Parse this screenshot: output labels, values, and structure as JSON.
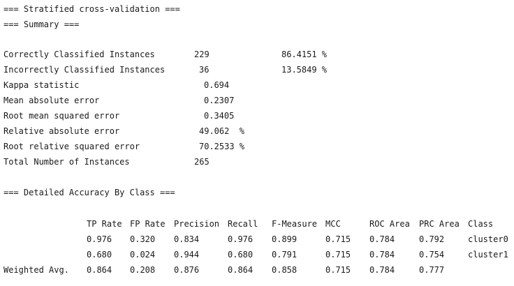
{
  "headings": {
    "cv": "=== Stratified cross-validation ===",
    "summary": "=== Summary ===",
    "detailed": "=== Detailed Accuracy By Class ==="
  },
  "summary": [
    {
      "label": "Correctly Classified Instances",
      "value": "229",
      "extra": "86.4151 %"
    },
    {
      "label": "Incorrectly Classified Instances",
      "value": "36",
      "extra": "13.5849 %"
    },
    {
      "label": "Kappa statistic",
      "value": "0.694",
      "extra": ""
    },
    {
      "label": "Mean absolute error",
      "value": "0.2307",
      "extra": ""
    },
    {
      "label": "Root mean squared error",
      "value": "0.3405",
      "extra": ""
    },
    {
      "label": "Relative absolute error",
      "value": "49.062  %",
      "extra": ""
    },
    {
      "label": "Root relative squared error",
      "value": "70.2533 %",
      "extra": ""
    },
    {
      "label": "Total Number of Instances",
      "value": "265",
      "extra": ""
    }
  ],
  "detail": {
    "headers": [
      "TP Rate",
      "FP Rate",
      "Precision",
      "Recall",
      "F-Measure",
      "MCC",
      "ROC Area",
      "PRC Area",
      "Class"
    ],
    "rows": [
      {
        "label": "",
        "cells": [
          "0.976",
          "0.320",
          "0.834",
          "0.976",
          "0.899",
          "0.715",
          "0.784",
          "0.792",
          "cluster0"
        ]
      },
      {
        "label": "",
        "cells": [
          "0.680",
          "0.024",
          "0.944",
          "0.680",
          "0.791",
          "0.715",
          "0.784",
          "0.754",
          "cluster1"
        ]
      },
      {
        "label": "Weighted Avg.",
        "cells": [
          "0.864",
          "0.208",
          "0.876",
          "0.864",
          "0.858",
          "0.715",
          "0.784",
          "0.777",
          ""
        ]
      }
    ]
  }
}
